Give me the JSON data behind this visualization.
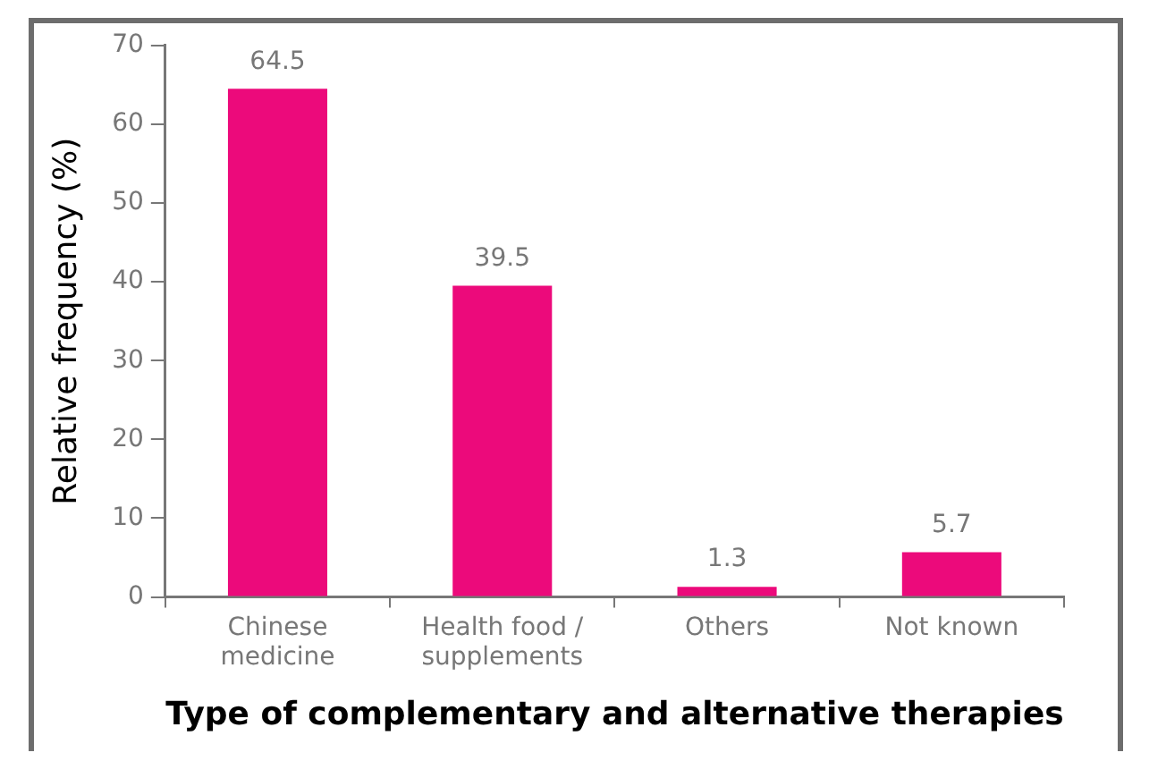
{
  "chart_data": {
    "type": "bar",
    "xlabel": "Type of complementary and alternative therapies",
    "ylabel": "Relative frequency (%)",
    "categories": [
      "Chinese medicine",
      "Health food / supplements",
      "Others",
      "Not known"
    ],
    "values": [
      64.5,
      39.5,
      1.3,
      5.7
    ],
    "color": "#ec0a7b",
    "ylim": [
      0,
      70
    ],
    "yticks": [
      0,
      10,
      20,
      30,
      40,
      50,
      60,
      70
    ],
    "grid": false,
    "legend": false,
    "data_labels": true
  }
}
